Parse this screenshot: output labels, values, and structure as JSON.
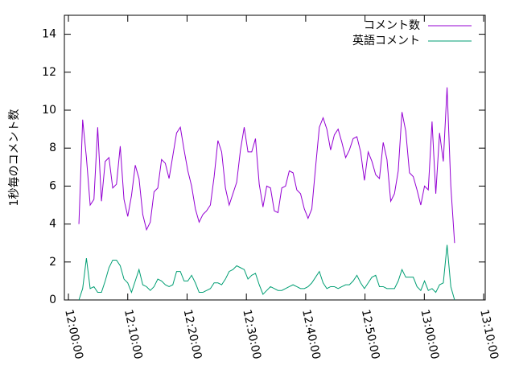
{
  "chart_data": {
    "type": "line",
    "y_label": "1秒毎のコメント数",
    "x": [
      "12:01:46",
      "12:02:24",
      "12:03:02",
      "12:03:40",
      "12:04:18",
      "12:04:56",
      "12:05:34",
      "12:06:12",
      "12:06:50",
      "12:07:28",
      "12:08:06",
      "12:08:44",
      "12:09:22",
      "12:10:00",
      "12:10:38",
      "12:11:16",
      "12:11:54",
      "12:12:32",
      "12:13:10",
      "12:13:48",
      "12:14:26",
      "12:15:04",
      "12:15:42",
      "12:16:20",
      "12:16:58",
      "12:17:36",
      "12:18:14",
      "12:18:52",
      "12:19:30",
      "12:20:08",
      "12:20:46",
      "12:21:24",
      "12:22:02",
      "12:22:40",
      "12:23:18",
      "12:23:56",
      "12:24:34",
      "12:25:12",
      "12:25:50",
      "12:26:28",
      "12:27:06",
      "12:27:44",
      "12:28:22",
      "12:29:00",
      "12:29:38",
      "12:30:16",
      "12:30:54",
      "12:31:32",
      "12:32:10",
      "12:32:48",
      "12:33:26",
      "12:34:04",
      "12:34:42",
      "12:35:20",
      "12:35:58",
      "12:36:36",
      "12:37:14",
      "12:37:52",
      "12:38:30",
      "12:39:08",
      "12:39:46",
      "12:40:24",
      "12:41:02",
      "12:41:40",
      "12:42:18",
      "12:42:56",
      "12:43:34",
      "12:44:12",
      "12:44:50",
      "12:45:28",
      "12:46:06",
      "12:46:44",
      "12:47:22",
      "12:48:00",
      "12:48:38",
      "12:49:16",
      "12:49:54",
      "12:50:32",
      "12:51:10",
      "12:51:48",
      "12:52:26",
      "12:53:04",
      "12:53:42",
      "12:54:20",
      "12:54:58",
      "12:55:36",
      "12:56:14",
      "12:56:52",
      "12:57:30",
      "12:58:08",
      "12:58:46",
      "12:59:24",
      "13:00:02",
      "13:00:40",
      "13:01:18",
      "13:01:56",
      "13:02:34",
      "13:03:12",
      "13:03:50",
      "13:04:28",
      "13:05:06"
    ],
    "series": [
      {
        "name": "コメント数",
        "color": "#9400d3",
        "values": [
          4.0,
          9.5,
          7.5,
          5.0,
          5.3,
          9.1,
          5.2,
          7.3,
          7.5,
          5.9,
          6.1,
          8.1,
          5.3,
          4.4,
          5.5,
          7.1,
          6.4,
          4.5,
          3.7,
          4.1,
          5.7,
          5.9,
          7.4,
          7.2,
          6.4,
          7.6,
          8.8,
          9.1,
          7.9,
          6.8,
          6.0,
          4.8,
          4.1,
          4.5,
          4.7,
          5.0,
          6.5,
          8.4,
          7.8,
          5.9,
          5.0,
          5.6,
          6.2,
          7.9,
          9.1,
          7.8,
          7.8,
          8.5,
          6.1,
          4.9,
          6.0,
          5.9,
          4.7,
          4.6,
          5.9,
          6.0,
          6.8,
          6.7,
          5.8,
          5.6,
          4.8,
          4.3,
          4.8,
          7.0,
          9.1,
          9.6,
          9.0,
          7.9,
          8.7,
          9.0,
          8.3,
          7.5,
          7.9,
          8.5,
          8.6,
          7.8,
          6.3,
          7.8,
          7.3,
          6.6,
          6.4,
          8.3,
          7.4,
          5.2,
          5.6,
          6.8,
          9.9,
          8.9,
          6.7,
          6.5,
          5.8,
          5.0,
          6.0,
          5.8,
          9.4,
          5.6,
          8.8,
          7.3,
          11.2,
          6.0,
          3.0
        ]
      },
      {
        "name": "英語コメント",
        "color": "#009e73",
        "values": [
          0.0,
          0.6,
          2.2,
          0.6,
          0.7,
          0.4,
          0.4,
          1.0,
          1.7,
          2.1,
          2.1,
          1.8,
          1.1,
          0.9,
          0.4,
          1.0,
          1.6,
          0.8,
          0.7,
          0.5,
          0.7,
          1.1,
          1.0,
          0.8,
          0.7,
          0.8,
          1.5,
          1.5,
          1.0,
          1.0,
          1.3,
          0.9,
          0.4,
          0.4,
          0.5,
          0.6,
          0.9,
          0.9,
          0.8,
          1.1,
          1.5,
          1.6,
          1.8,
          1.7,
          1.6,
          1.1,
          1.3,
          1.4,
          0.8,
          0.3,
          0.5,
          0.7,
          0.6,
          0.5,
          0.5,
          0.6,
          0.7,
          0.8,
          0.7,
          0.6,
          0.6,
          0.7,
          0.9,
          1.2,
          1.5,
          0.9,
          0.6,
          0.7,
          0.7,
          0.6,
          0.7,
          0.8,
          0.8,
          1.0,
          1.3,
          0.9,
          0.6,
          0.9,
          1.2,
          1.3,
          0.7,
          0.7,
          0.6,
          0.6,
          0.6,
          1.0,
          1.6,
          1.2,
          1.2,
          1.2,
          0.7,
          0.5,
          1.0,
          0.5,
          0.6,
          0.4,
          0.8,
          0.9,
          2.9,
          0.7,
          0.0
        ]
      }
    ],
    "xlim": [
      "11:59:19",
      "13:10:16"
    ],
    "xticks": [
      "12:00:00",
      "12:10:00",
      "12:20:00",
      "12:30:00",
      "12:40:00",
      "12:50:00",
      "13:00:00",
      "13:10:00"
    ],
    "ylim": [
      0,
      15
    ],
    "yticks": [
      0,
      2,
      4,
      6,
      8,
      10,
      12,
      14
    ],
    "legend": "top-right"
  }
}
